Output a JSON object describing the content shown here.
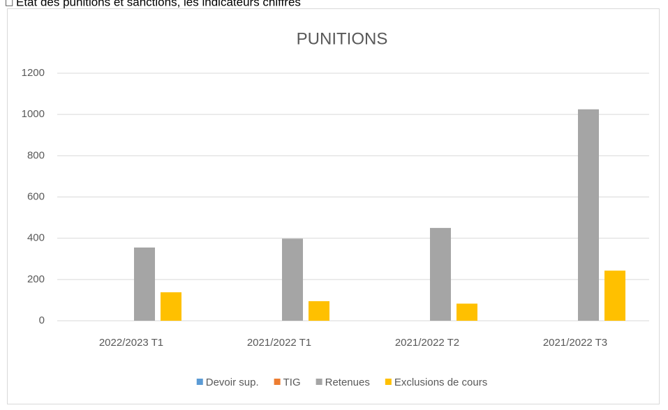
{
  "header": {
    "title": "□ État des punitions et sanctions, les indicateurs chiffrés"
  },
  "chart_data": {
    "type": "bar",
    "title": "PUNITIONS",
    "categories": [
      "2022/2023 T1",
      "2021/2022 T1",
      "2021/2022 T2",
      "2021/2022 T3"
    ],
    "series": [
      {
        "name": "Devoir sup.",
        "color": "#5b9bd5",
        "values": [
          0,
          0,
          0,
          0
        ]
      },
      {
        "name": "TIG",
        "color": "#ed7d31",
        "values": [
          0,
          0,
          0,
          0
        ]
      },
      {
        "name": "Retenues",
        "color": "#a5a5a5",
        "values": [
          355,
          398,
          450,
          1025
        ]
      },
      {
        "name": "Exclusions de cours",
        "color": "#ffc000",
        "values": [
          138,
          95,
          83,
          243
        ]
      }
    ],
    "ylim": [
      0,
      1200
    ],
    "yticks": [
      0,
      200,
      400,
      600,
      800,
      1000,
      1200
    ],
    "grid": true,
    "legend": "bottom"
  }
}
